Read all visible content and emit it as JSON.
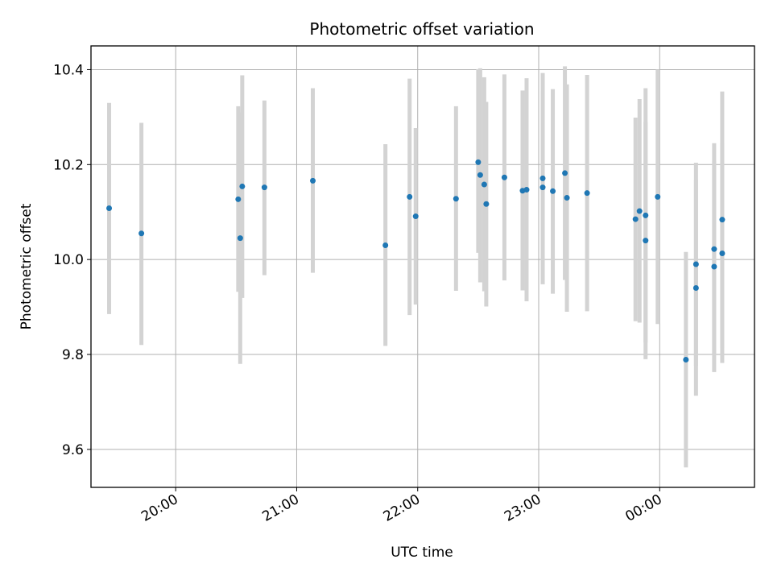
{
  "chart_data": {
    "type": "scatter",
    "title": "Photometric offset variation",
    "xlabel": "UTC time",
    "ylabel": "Photometric offset",
    "x_ticks": [
      "20:00",
      "21:00",
      "22:00",
      "23:00",
      "00:00"
    ],
    "y_ticks": [
      "9.6",
      "9.8",
      "10.0",
      "10.2",
      "10.4"
    ],
    "ylim": [
      9.52,
      10.45
    ],
    "xlim": [
      "19:18",
      "00:47"
    ],
    "grid": true,
    "colors": {
      "point": "#1f77b4",
      "errorbar": "#d3d3d3",
      "grid": "#b0b0b0"
    },
    "points": [
      {
        "x": "19:27",
        "y": 10.108,
        "ylow": 9.885,
        "yhigh": 10.33
      },
      {
        "x": "19:43",
        "y": 10.055,
        "ylow": 9.82,
        "yhigh": 10.288
      },
      {
        "x": "20:31",
        "y": 10.127,
        "ylow": 9.932,
        "yhigh": 10.323
      },
      {
        "x": "20:32",
        "y": 10.045,
        "ylow": 9.78,
        "yhigh": 10.31
      },
      {
        "x": "20:33",
        "y": 10.154,
        "ylow": 9.919,
        "yhigh": 10.388
      },
      {
        "x": "20:44",
        "y": 10.152,
        "ylow": 9.967,
        "yhigh": 10.335
      },
      {
        "x": "21:08",
        "y": 10.166,
        "ylow": 9.972,
        "yhigh": 10.361
      },
      {
        "x": "21:44",
        "y": 10.03,
        "ylow": 9.818,
        "yhigh": 10.243
      },
      {
        "x": "21:56",
        "y": 10.132,
        "ylow": 9.883,
        "yhigh": 10.381
      },
      {
        "x": "21:59",
        "y": 10.091,
        "ylow": 9.905,
        "yhigh": 10.277
      },
      {
        "x": "22:19",
        "y": 10.128,
        "ylow": 9.934,
        "yhigh": 10.323
      },
      {
        "x": "22:30",
        "y": 10.205,
        "ylow": 10.014,
        "yhigh": 10.401
      },
      {
        "x": "22:31",
        "y": 10.178,
        "ylow": 9.952,
        "yhigh": 10.403
      },
      {
        "x": "22:33",
        "y": 10.158,
        "ylow": 9.933,
        "yhigh": 10.384
      },
      {
        "x": "22:34",
        "y": 10.117,
        "ylow": 9.901,
        "yhigh": 10.332
      },
      {
        "x": "22:43",
        "y": 10.173,
        "ylow": 9.956,
        "yhigh": 10.39
      },
      {
        "x": "22:52",
        "y": 10.145,
        "ylow": 9.935,
        "yhigh": 10.356
      },
      {
        "x": "22:54",
        "y": 10.147,
        "ylow": 9.912,
        "yhigh": 10.382
      },
      {
        "x": "23:02",
        "y": 10.152,
        "ylow": 9.948,
        "yhigh": 10.355
      },
      {
        "x": "23:02",
        "y": 10.171,
        "ylow": 9.948,
        "yhigh": 10.393
      },
      {
        "x": "23:07",
        "y": 10.144,
        "ylow": 9.928,
        "yhigh": 10.359
      },
      {
        "x": "23:13",
        "y": 10.182,
        "ylow": 9.957,
        "yhigh": 10.407
      },
      {
        "x": "23:14",
        "y": 10.13,
        "ylow": 9.89,
        "yhigh": 10.369
      },
      {
        "x": "23:24",
        "y": 10.14,
        "ylow": 9.891,
        "yhigh": 10.389
      },
      {
        "x": "23:48",
        "y": 10.085,
        "ylow": 9.87,
        "yhigh": 10.299
      },
      {
        "x": "23:50",
        "y": 10.102,
        "ylow": 9.867,
        "yhigh": 10.338
      },
      {
        "x": "23:53",
        "y": 10.093,
        "ylow": 9.825,
        "yhigh": 10.361
      },
      {
        "x": "23:53",
        "y": 10.04,
        "ylow": 9.79,
        "yhigh": 10.29
      },
      {
        "x": "23:59",
        "y": 10.132,
        "ylow": 9.864,
        "yhigh": 10.4
      },
      {
        "x": "00:13",
        "y": 9.789,
        "ylow": 9.562,
        "yhigh": 10.016
      },
      {
        "x": "00:18",
        "y": 9.94,
        "ylow": 9.713,
        "yhigh": 10.168
      },
      {
        "x": "00:18",
        "y": 9.99,
        "ylow": 9.776,
        "yhigh": 10.204
      },
      {
        "x": "00:27",
        "y": 9.985,
        "ylow": 9.763,
        "yhigh": 10.207
      },
      {
        "x": "00:27",
        "y": 10.022,
        "ylow": 9.8,
        "yhigh": 10.245
      },
      {
        "x": "00:31",
        "y": 10.084,
        "ylow": 9.814,
        "yhigh": 10.354
      },
      {
        "x": "00:31",
        "y": 10.013,
        "ylow": 9.782,
        "yhigh": 10.245
      }
    ]
  }
}
